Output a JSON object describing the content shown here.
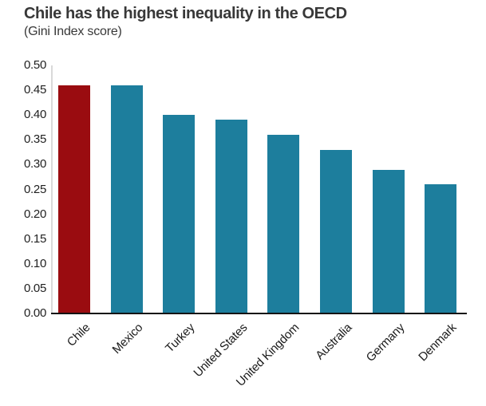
{
  "header": {
    "title": "Chile has the highest inequality in the OECD",
    "subtitle": "(Gini Index score)"
  },
  "chart_data": {
    "type": "bar",
    "title": "Chile has the highest inequality in the OECD",
    "subtitle": "(Gini Index score)",
    "categories": [
      "Chile",
      "Mexico",
      "Turkey",
      "United States",
      "United Kingdom",
      "Australia",
      "Germany",
      "Denmark"
    ],
    "values": [
      0.46,
      0.46,
      0.4,
      0.39,
      0.36,
      0.33,
      0.29,
      0.26
    ],
    "xlabel": "",
    "ylabel": "",
    "ylim": [
      0,
      0.5
    ],
    "yticks": [
      "0.50",
      "0.45",
      "0.40",
      "0.35",
      "0.30",
      "0.25",
      "0.20",
      "0.15",
      "0.10",
      "0.05",
      "0.00"
    ],
    "ytick_values": [
      0.5,
      0.45,
      0.4,
      0.35,
      0.3,
      0.25,
      0.2,
      0.15,
      0.1,
      0.05,
      0.0
    ],
    "grid": false,
    "legend": "none",
    "x_label_rotation_deg": 45,
    "highlight_category": "Chile",
    "colors": {
      "highlight_bar": "#9a0c10",
      "default_bar": "#1d7e9d",
      "axis_line": "#d9d9d9",
      "baseline": "#141414",
      "title_text": "#383838",
      "tick_text": "#1f1f1f"
    }
  }
}
